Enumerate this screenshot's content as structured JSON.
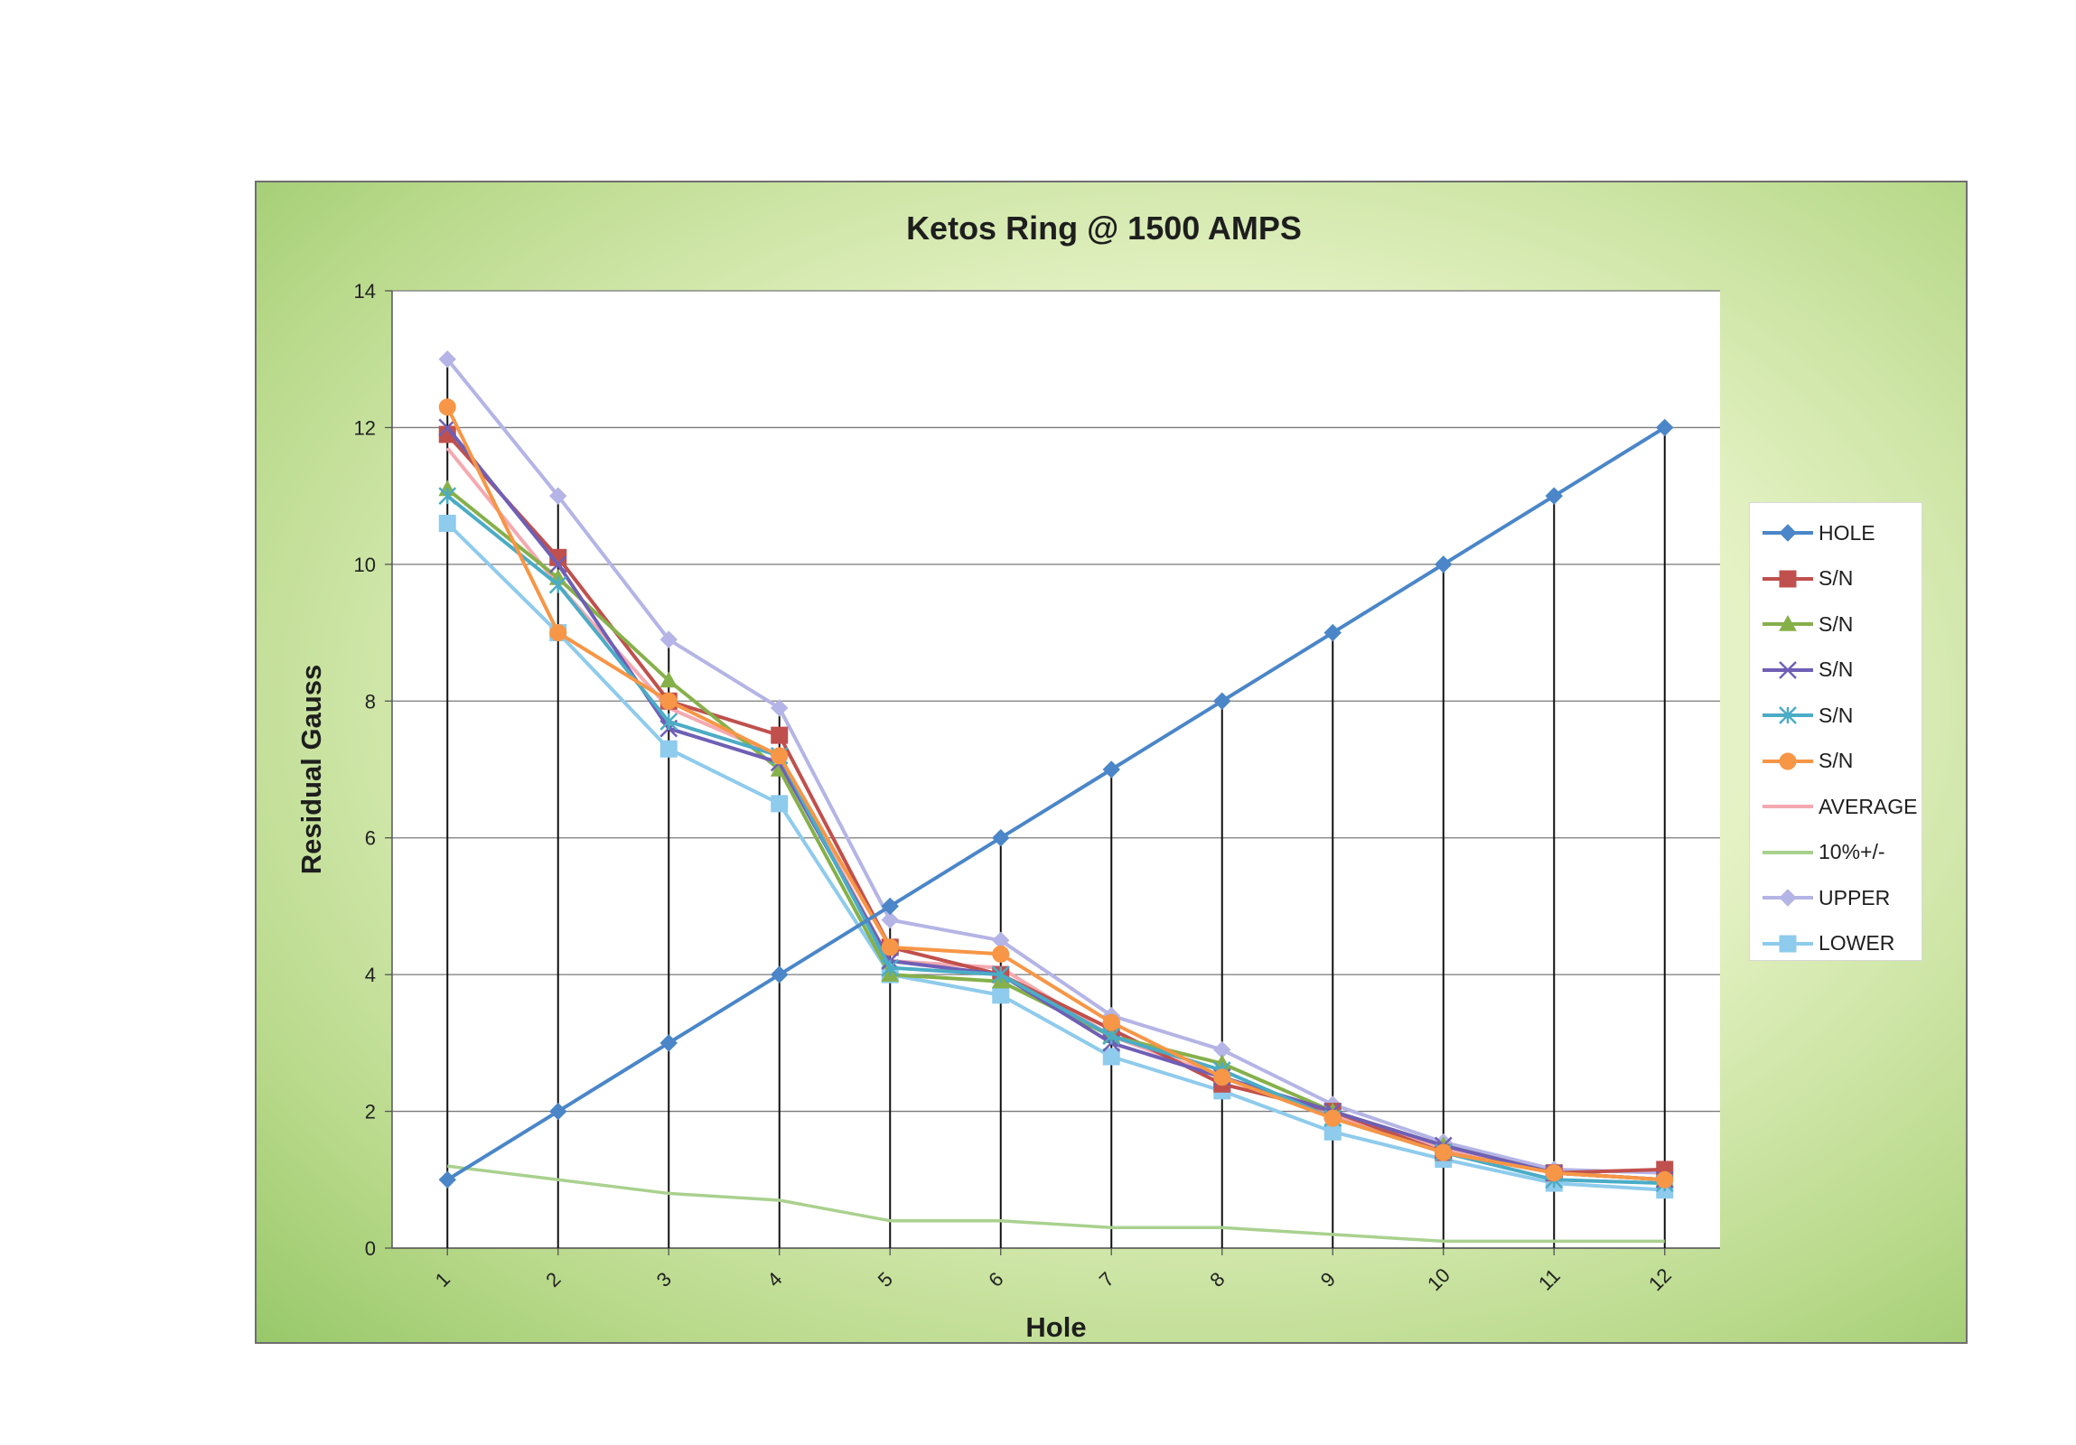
{
  "chart_data": {
    "type": "line",
    "title": "Ketos Ring @ 1500 AMPS",
    "xlabel": "Hole",
    "ylabel": "Residual Gauss",
    "categories": [
      "1",
      "2",
      "3",
      "4",
      "5",
      "6",
      "7",
      "8",
      "9",
      "10",
      "11",
      "12"
    ],
    "ylim": [
      0,
      14
    ],
    "yticks": [
      0,
      2,
      4,
      6,
      8,
      10,
      12,
      14
    ],
    "grid": true,
    "legend": "right",
    "series": [
      {
        "name": "HOLE",
        "color": "#4a86c8",
        "marker": "diamond",
        "values": [
          1,
          2,
          3,
          4,
          5,
          6,
          7,
          8,
          9,
          10,
          11,
          12
        ]
      },
      {
        "name": "S/N",
        "color": "#c0504d",
        "marker": "square",
        "values": [
          11.9,
          10.1,
          8.0,
          7.5,
          4.4,
          4.0,
          3.2,
          2.4,
          2.0,
          1.4,
          1.1,
          1.15
        ]
      },
      {
        "name": "S/N",
        "color": "#86b04a",
        "marker": "triangle",
        "values": [
          11.1,
          9.8,
          8.3,
          7.0,
          4.0,
          3.9,
          3.1,
          2.7,
          2.0,
          1.5,
          1.1,
          1.0
        ]
      },
      {
        "name": "S/N",
        "color": "#6f5fb5",
        "marker": "x",
        "values": [
          12.0,
          10.0,
          7.6,
          7.1,
          4.2,
          4.0,
          3.0,
          2.5,
          2.0,
          1.5,
          1.1,
          1.0
        ]
      },
      {
        "name": "S/N",
        "color": "#4bacc6",
        "marker": "star",
        "values": [
          11.0,
          9.7,
          7.7,
          7.2,
          4.1,
          4.0,
          3.1,
          2.6,
          1.9,
          1.4,
          1.0,
          0.95
        ]
      },
      {
        "name": "S/N",
        "color": "#f79646",
        "marker": "circle",
        "values": [
          12.3,
          9.0,
          8.0,
          7.2,
          4.4,
          4.3,
          3.3,
          2.5,
          1.9,
          1.4,
          1.1,
          1.0
        ]
      },
      {
        "name": "AVERAGE",
        "color": "#f4a9b0",
        "marker": "none",
        "values": [
          11.7,
          9.7,
          7.9,
          7.2,
          4.2,
          4.1,
          3.1,
          2.5,
          1.95,
          1.45,
          1.1,
          1.0
        ]
      },
      {
        "name": "10%+/-",
        "color": "#a9d18e",
        "marker": "none",
        "values": [
          1.2,
          1.0,
          0.8,
          0.7,
          0.4,
          0.4,
          0.3,
          0.3,
          0.2,
          0.1,
          0.1,
          0.1
        ]
      },
      {
        "name": "UPPER",
        "color": "#b4b4e6",
        "marker": "diamond",
        "values": [
          13.0,
          11.0,
          8.9,
          7.9,
          4.8,
          4.5,
          3.4,
          2.9,
          2.1,
          1.55,
          1.15,
          1.1
        ]
      },
      {
        "name": "LOWER",
        "color": "#8ecbec",
        "marker": "square",
        "values": [
          10.6,
          9.0,
          7.3,
          6.5,
          4.0,
          3.7,
          2.8,
          2.3,
          1.7,
          1.3,
          0.95,
          0.85
        ]
      }
    ]
  }
}
